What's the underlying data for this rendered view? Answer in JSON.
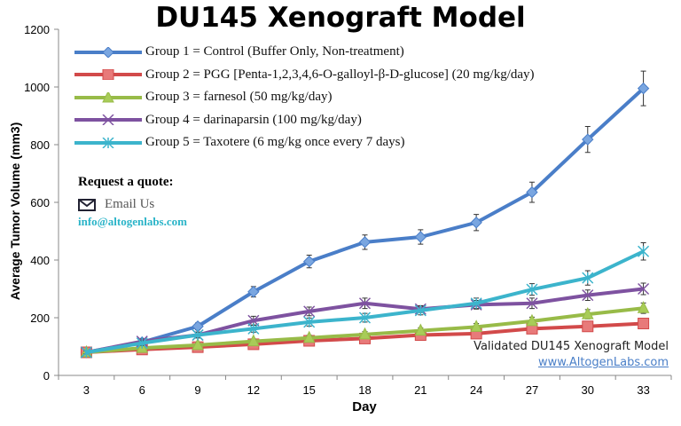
{
  "chart_data": {
    "type": "line",
    "title": "DU145 Xenograft Model",
    "xlabel": "Day",
    "ylabel": "Average Tumor Volume (mm3)",
    "ylim": [
      0,
      1200
    ],
    "yticks": [
      0,
      200,
      400,
      600,
      800,
      1000,
      1200
    ],
    "x": [
      3,
      6,
      9,
      12,
      15,
      18,
      21,
      24,
      27,
      30,
      33
    ],
    "grid": false,
    "legend": "top-left",
    "series": [
      {
        "name": "Group 1 = Control (Buffer Only, Non-treatment)",
        "color": "#4a7ec8",
        "marker": "diamond",
        "values": [
          80,
          115,
          170,
          290,
          395,
          462,
          480,
          530,
          635,
          818,
          995
        ],
        "errors": [
          5,
          8,
          12,
          18,
          22,
          25,
          25,
          28,
          35,
          45,
          60
        ]
      },
      {
        "name": "Group 2 = PGG [Penta-1,2,3,4,6-O-galloyl-β-D-glucose] (20 mg/kg/day)",
        "color": "#d24a4a",
        "marker": "square",
        "values": [
          80,
          90,
          98,
          108,
          120,
          128,
          140,
          145,
          162,
          170,
          180
        ],
        "errors": [
          5,
          6,
          7,
          8,
          9,
          10,
          10,
          12,
          14,
          16,
          18
        ]
      },
      {
        "name": "Group 3 = farnesol (50 mg/kg/day)",
        "color": "#98bb48",
        "marker": "triangle",
        "values": [
          80,
          95,
          105,
          118,
          130,
          142,
          155,
          168,
          188,
          212,
          233
        ],
        "errors": [
          5,
          6,
          7,
          8,
          9,
          10,
          10,
          12,
          14,
          16,
          18
        ]
      },
      {
        "name": "Group 4 = darinaparsin (100 mg/kg/day)",
        "color": "#7e52a0",
        "marker": "x",
        "values": [
          80,
          118,
          140,
          190,
          222,
          250,
          230,
          245,
          250,
          278,
          300
        ],
        "errors": [
          5,
          8,
          10,
          15,
          15,
          18,
          12,
          15,
          18,
          18,
          20
        ]
      },
      {
        "name": "Group 5 = Taxotere (6 mg/kg once every 7 days)",
        "color": "#3cb4cc",
        "marker": "star",
        "values": [
          80,
          112,
          140,
          162,
          185,
          200,
          225,
          250,
          298,
          338,
          430
        ],
        "errors": [
          5,
          8,
          10,
          12,
          14,
          15,
          15,
          18,
          20,
          25,
          30
        ]
      }
    ]
  },
  "info": {
    "request": "Request a quote:",
    "email_label": "Email Us",
    "email": "info@altogenlabs.com",
    "validated": "Validated DU145 Xenograft Model",
    "url": "www.AltogenLabs.com"
  }
}
